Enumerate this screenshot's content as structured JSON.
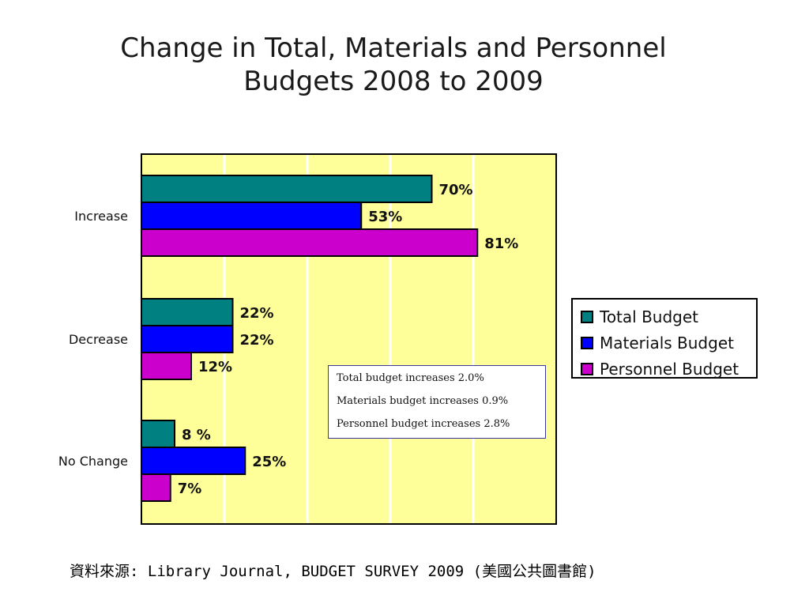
{
  "title": {
    "line1": "Change in Total, Materials and Personnel",
    "line2": "Budgets 2008 to 2009"
  },
  "chart_data": {
    "type": "bar",
    "orientation": "horizontal",
    "categories": [
      "Increase",
      "Decrease",
      "No Change"
    ],
    "series": [
      {
        "name": "Total Budget",
        "color": "#008080",
        "values": [
          70,
          22,
          8
        ],
        "labels": [
          "70%",
          "22%",
          "8 %"
        ]
      },
      {
        "name": "Materials Budget",
        "color": "#0000ff",
        "values": [
          53,
          22,
          25
        ],
        "labels": [
          "53%",
          "22%",
          "25%"
        ]
      },
      {
        "name": "Personnel Budget",
        "color": "#cc00cc",
        "values": [
          81,
          12,
          7
        ],
        "labels": [
          "81%",
          "12%",
          "7%"
        ]
      }
    ],
    "xlim": [
      0,
      100
    ],
    "grid": true,
    "background_color": "#ffff99",
    "legend_position": "right"
  },
  "annotation": {
    "lines": [
      "Total budget increases 2.0%",
      "Materials budget increases 0.9%",
      "Personnel budget increases 2.8%"
    ]
  },
  "source": "資料來源: Library Journal, BUDGET SURVEY 2009 (美國公共圖書館)"
}
